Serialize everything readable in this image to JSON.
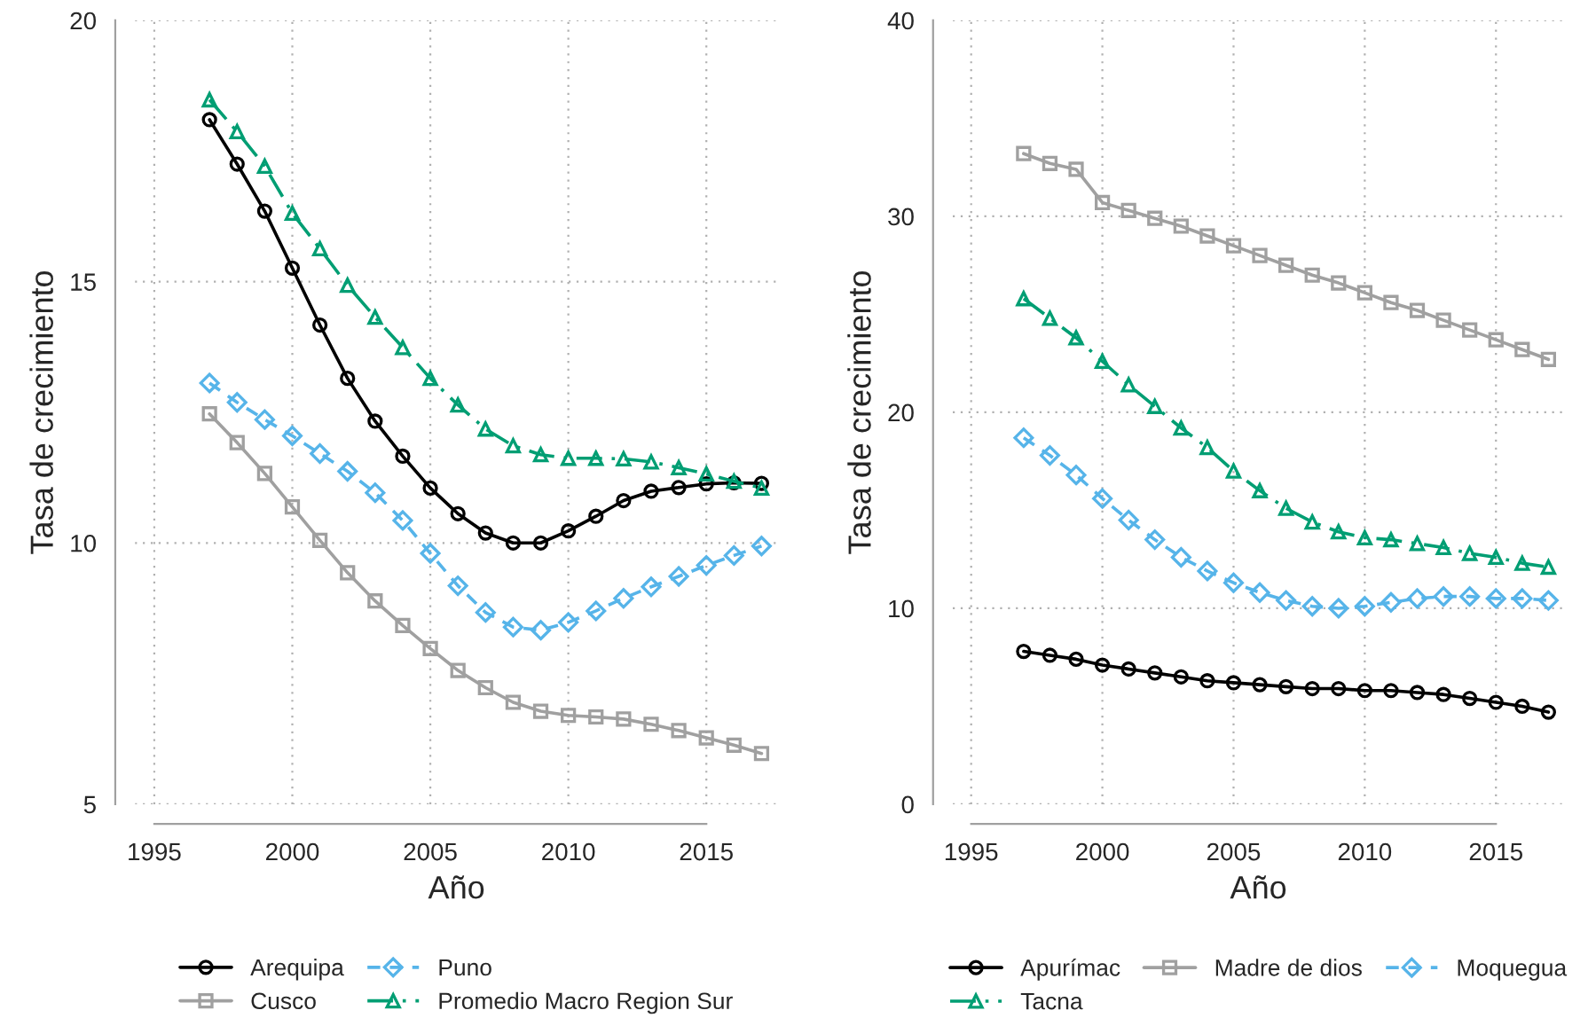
{
  "chart_data": [
    {
      "type": "line",
      "xlabel": "Año",
      "ylabel": "Tasa de crecimiento",
      "x": [
        1997,
        1998,
        1999,
        2000,
        2001,
        2002,
        2003,
        2004,
        2005,
        2006,
        2007,
        2008,
        2009,
        2010,
        2011,
        2012,
        2013,
        2014,
        2015,
        2016,
        2017
      ],
      "xlim": [
        1994.3,
        2017.6
      ],
      "xticks": [
        1995,
        2000,
        2005,
        2010,
        2015
      ],
      "ylim": [
        5,
        20
      ],
      "yticks": [
        5,
        10,
        15,
        20
      ],
      "grid": true,
      "legend": "bottom",
      "series": [
        {
          "name": "Arequipa",
          "color": "#000000",
          "marker": "circle",
          "line_style": "solid",
          "values": [
            18.1,
            17.25,
            16.35,
            15.26,
            14.17,
            13.15,
            12.33,
            11.66,
            11.05,
            10.56,
            10.19,
            10.0,
            10.0,
            10.23,
            10.51,
            10.81,
            10.99,
            11.06,
            11.13,
            11.15,
            11.14
          ]
        },
        {
          "name": "Puno",
          "color": "#56b4e9",
          "marker": "diamond",
          "line_style": "dashed",
          "values": [
            13.06,
            12.69,
            12.36,
            12.05,
            11.71,
            11.37,
            10.96,
            10.43,
            9.8,
            9.18,
            8.67,
            8.39,
            8.33,
            8.48,
            8.7,
            8.94,
            9.16,
            9.36,
            9.57,
            9.76,
            9.94
          ]
        },
        {
          "name": "Cusco",
          "color": "#a0a0a0",
          "marker": "square",
          "line_style": "solid",
          "values": [
            12.47,
            11.92,
            11.33,
            10.69,
            10.05,
            9.43,
            8.89,
            8.42,
            7.98,
            7.56,
            7.23,
            6.95,
            6.78,
            6.7,
            6.67,
            6.63,
            6.53,
            6.41,
            6.27,
            6.13,
            5.97
          ]
        },
        {
          "name": "Promedio Macro Region Sur",
          "color": "#009e73",
          "marker": "triangle",
          "line_style": "dashdot",
          "values": [
            18.48,
            17.87,
            17.21,
            16.31,
            15.63,
            14.93,
            14.32,
            13.74,
            13.15,
            12.64,
            12.18,
            11.86,
            11.69,
            11.62,
            11.62,
            11.61,
            11.55,
            11.44,
            11.32,
            11.18,
            11.05
          ]
        }
      ]
    },
    {
      "type": "line",
      "xlabel": "Año",
      "ylabel": "Tasa de crecimiento",
      "x": [
        1997,
        1998,
        1999,
        2000,
        2001,
        2002,
        2003,
        2004,
        2005,
        2006,
        2007,
        2008,
        2009,
        2010,
        2011,
        2012,
        2013,
        2014,
        2015,
        2016,
        2017
      ],
      "xlim": [
        1994.3,
        2017.6
      ],
      "xticks": [
        1995,
        2000,
        2005,
        2010,
        2015
      ],
      "ylim": [
        0,
        40
      ],
      "yticks": [
        0,
        10,
        20,
        30,
        40
      ],
      "grid": true,
      "legend": "bottom",
      "series": [
        {
          "name": "Apurímac",
          "color": "#000000",
          "marker": "circle",
          "line_style": "solid",
          "values": [
            7.8,
            7.6,
            7.4,
            7.1,
            6.9,
            6.7,
            6.5,
            6.3,
            6.2,
            6.1,
            6.0,
            5.9,
            5.9,
            5.8,
            5.8,
            5.7,
            5.6,
            5.4,
            5.2,
            5.0,
            4.7
          ]
        },
        {
          "name": "Madre de dios",
          "color": "#a0a0a0",
          "marker": "square",
          "line_style": "solid",
          "values": [
            33.2,
            32.7,
            32.4,
            30.7,
            30.3,
            29.9,
            29.5,
            29.0,
            28.5,
            28.0,
            27.5,
            27.0,
            26.6,
            26.1,
            25.6,
            25.2,
            24.7,
            24.2,
            23.7,
            23.2,
            22.7
          ]
        },
        {
          "name": "Moquegua",
          "color": "#56b4e9",
          "marker": "diamond",
          "line_style": "dashed",
          "values": [
            18.7,
            17.8,
            16.8,
            15.6,
            14.5,
            13.5,
            12.6,
            11.9,
            11.3,
            10.8,
            10.4,
            10.1,
            10.0,
            10.1,
            10.3,
            10.5,
            10.6,
            10.6,
            10.5,
            10.5,
            10.4
          ]
        },
        {
          "name": "Tacna",
          "color": "#009e73",
          "marker": "triangle",
          "line_style": "dashdot",
          "values": [
            25.8,
            24.8,
            23.8,
            22.6,
            21.4,
            20.3,
            19.2,
            18.2,
            17.0,
            16.0,
            15.1,
            14.4,
            13.9,
            13.6,
            13.5,
            13.3,
            13.1,
            12.8,
            12.6,
            12.3,
            12.1
          ]
        }
      ]
    }
  ]
}
